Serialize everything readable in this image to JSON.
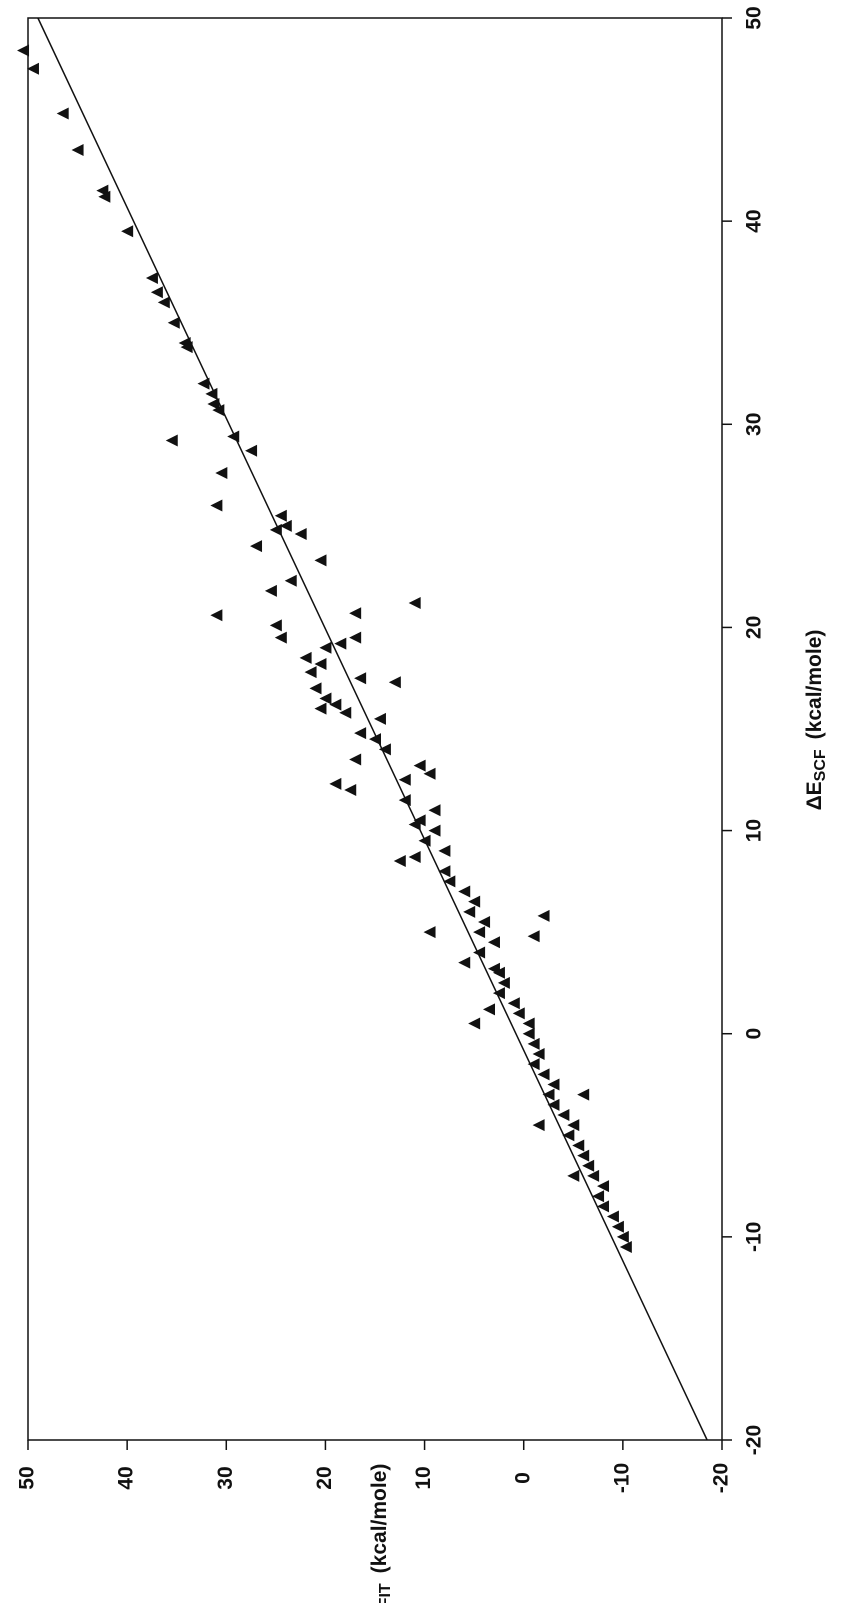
{
  "chart_data": {
    "type": "scatter",
    "x_label": [
      "ΔE",
      "SCF",
      "(kcal/mole)"
    ],
    "y_label": [
      "ΔE",
      "FIT",
      "(kcal/mole)"
    ],
    "xlim": [
      -20,
      50
    ],
    "ylim": [
      -20,
      50
    ],
    "xticks": [
      -20,
      -10,
      0,
      10,
      20,
      30,
      40,
      50
    ],
    "yticks": [
      -20,
      -10,
      0,
      10,
      20,
      30,
      40,
      50
    ],
    "marker_color": "#111111",
    "points": {
      "x": [
        48.4,
        47.5,
        45.3,
        43.5,
        41.5,
        41.2,
        39.5,
        37.2,
        36.5,
        36,
        35,
        34,
        33.8,
        32,
        31.5,
        31,
        30.7,
        29.4,
        29.2,
        28.7,
        27.6,
        26,
        25.5,
        25,
        24.6,
        24.8,
        24,
        23.3,
        22.3,
        21.8,
        21.2,
        20.6,
        20.7,
        20.1,
        19.5,
        19.5,
        19.2,
        19,
        18.5,
        18.2,
        17.8,
        17.5,
        17.3,
        17,
        16.5,
        16.2,
        16,
        15.8,
        15.5,
        14.8,
        14.5,
        14,
        13.5,
        13.2,
        12.8,
        12.5,
        12.3,
        12,
        11.5,
        11,
        10.5,
        10.3,
        10,
        9.5,
        9,
        8.7,
        8.5,
        8,
        7.5,
        7,
        6.5,
        6,
        5.8,
        5.5,
        5,
        5,
        4.8,
        4.5,
        4,
        3.5,
        3.2,
        3,
        2.5,
        2,
        1.5,
        1.2,
        1,
        0.5,
        0.5,
        0,
        -0.5,
        -1,
        -1.5,
        -2,
        -2.5,
        -3,
        -3,
        -3.5,
        -4,
        -4.5,
        -4.5,
        -5,
        -5.5,
        -6,
        -6.5,
        -7,
        -7,
        -7.5,
        -8,
        -8.5,
        -9,
        -9.5,
        -10,
        -10.5
      ],
      "y": [
        50.5,
        49.5,
        46.5,
        45,
        42.5,
        42.3,
        40,
        37.5,
        37,
        36.3,
        35.3,
        34.2,
        34,
        32.3,
        31.5,
        31.3,
        30.8,
        29.3,
        35.5,
        27.5,
        30.5,
        31,
        24.5,
        24,
        22.5,
        25,
        27,
        20.5,
        23.5,
        25.5,
        11,
        31,
        17,
        25,
        24.5,
        17,
        18.5,
        20,
        22,
        20.5,
        21.5,
        16.5,
        13,
        21,
        20,
        19,
        20.5,
        18,
        14.5,
        16.5,
        15,
        14,
        17,
        10.5,
        9.5,
        12,
        19,
        17.5,
        12,
        9,
        10.5,
        11,
        9,
        10,
        8,
        11,
        12.5,
        8,
        7.5,
        6,
        5,
        5.5,
        -2,
        4,
        4.5,
        9.5,
        -1,
        3,
        4.5,
        6,
        3,
        2.5,
        2,
        2.5,
        1,
        3.5,
        0.5,
        -0.5,
        5,
        -0.5,
        -1,
        -1.5,
        -1,
        -2,
        -3,
        -2.5,
        -6,
        -3,
        -4,
        -5,
        -1.5,
        -4.5,
        -5.5,
        -6,
        -6.5,
        -5,
        -7,
        -8,
        -7.5,
        -8,
        -9,
        -9.5,
        -10,
        -10.3
      ]
    },
    "fit_line": {
      "x": [
        -20,
        50
      ],
      "y": [
        -18.5,
        49
      ]
    }
  }
}
